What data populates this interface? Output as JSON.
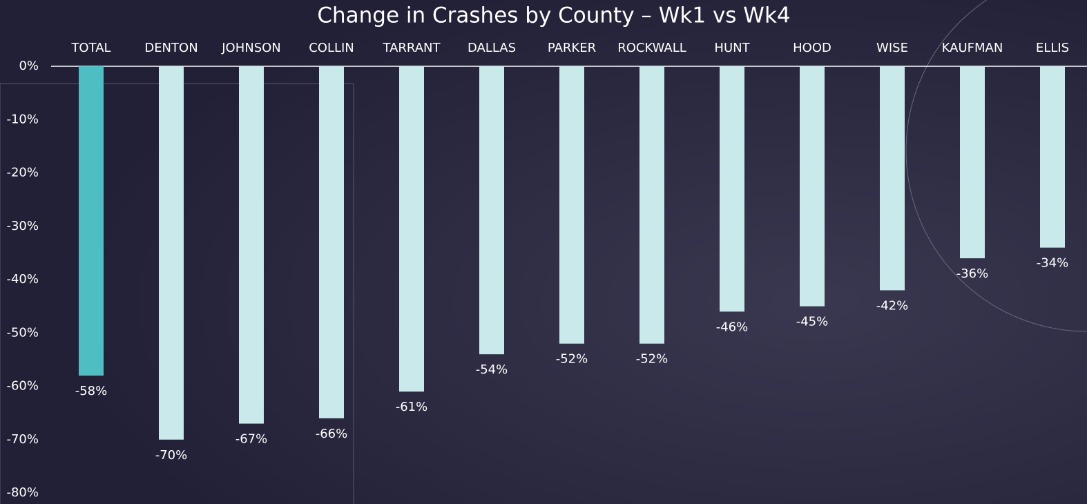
{
  "chart_data": {
    "type": "bar",
    "title": "Change in Crashes by County – Wk1 vs Wk4",
    "categories": [
      "TOTAL",
      "DENTON",
      "JOHNSON",
      "COLLIN",
      "TARRANT",
      "DALLAS",
      "PARKER",
      "ROCKWALL",
      "HUNT",
      "HOOD",
      "WISE",
      "KAUFMAN",
      "ELLIS"
    ],
    "values": [
      -58,
      -70,
      -67,
      -66,
      -61,
      -54,
      -52,
      -52,
      -46,
      -45,
      -42,
      -36,
      -34
    ],
    "value_labels": [
      "-58%",
      "-70%",
      "-67%",
      "-66%",
      "-61%",
      "-54%",
      "-52%",
      "-52%",
      "-46%",
      "-45%",
      "-42%",
      "-36%",
      "-34%"
    ],
    "colors": [
      "#4fbdc4",
      "#c9e9eb",
      "#c9e9eb",
      "#c9e9eb",
      "#c9e9eb",
      "#c9e9eb",
      "#c9e9eb",
      "#c9e9eb",
      "#c9e9eb",
      "#c9e9eb",
      "#c9e9eb",
      "#c9e9eb",
      "#c9e9eb"
    ],
    "ylim": [
      -80,
      0
    ],
    "yticks": [
      {
        "value": 0,
        "label": "0%"
      },
      {
        "value": -10,
        "label": "-10%"
      },
      {
        "value": -20,
        "label": "-20%"
      },
      {
        "value": -30,
        "label": "-30%"
      },
      {
        "value": -40,
        "label": "-40%"
      },
      {
        "value": -50,
        "label": "-50%"
      },
      {
        "value": -60,
        "label": "-60%"
      },
      {
        "value": -70,
        "label": "-70%"
      },
      {
        "value": -80,
        "label": "-80%"
      }
    ],
    "grid": false
  }
}
